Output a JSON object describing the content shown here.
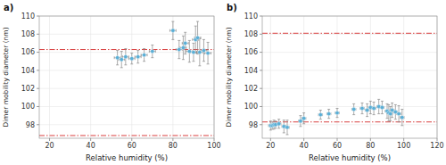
{
  "chart_data": [
    {
      "type": "scatter",
      "title": "a)",
      "x_label": "Relative humidity (%)",
      "y_label": "Dimer mobility diameter (nm)",
      "xlim": [
        15,
        100
      ],
      "ylim": [
        96.5,
        110
      ],
      "xticks": [
        20,
        40,
        60,
        80,
        100
      ],
      "yticks": [
        98,
        100,
        102,
        104,
        106,
        108,
        110
      ],
      "color": "#5bafd6",
      "reference_lines": {
        "values": [
          106.3,
          96.8
        ],
        "color": "#d94040",
        "line_style": "dashdot"
      },
      "x": [
        53,
        55,
        57,
        60,
        63,
        66,
        70,
        80,
        83,
        85,
        86,
        88,
        90,
        91,
        92,
        93,
        95,
        97
      ],
      "values": [
        105.4,
        105.2,
        105.5,
        105.3,
        105.5,
        105.7,
        106.1,
        108.4,
        106.3,
        106.5,
        107.0,
        106.1,
        106.0,
        107.4,
        107.6,
        106.0,
        106.2,
        105.9
      ],
      "x_error": [
        1.5,
        1.5,
        1.5,
        1.5,
        1.5,
        1.5,
        1.5,
        1.5,
        1.5,
        1.5,
        1.5,
        1.5,
        1.5,
        1.5,
        1.5,
        1.5,
        1.5,
        1.5
      ],
      "y_error": [
        0.8,
        0.9,
        0.9,
        0.6,
        0.7,
        0.7,
        0.7,
        1.0,
        1.0,
        1.3,
        1.2,
        1.2,
        1.0,
        1.5,
        1.8,
        1.5,
        1.2,
        1.2
      ]
    },
    {
      "type": "scatter",
      "title": "b)",
      "x_label": "Relative humidity (%)",
      "y_label": "Dimer mobility diameter (nm)",
      "xlim": [
        15,
        120
      ],
      "ylim": [
        96.5,
        110
      ],
      "xticks": [
        20,
        40,
        60,
        80,
        100,
        120
      ],
      "yticks": [
        98,
        100,
        102,
        104,
        106,
        108,
        110
      ],
      "color": "#5bafd6",
      "reference_lines": {
        "values": [
          108.1,
          98.3
        ],
        "color": "#d94040",
        "line_style": "dashdot"
      },
      "x": [
        20,
        21,
        22,
        23,
        25,
        28,
        30,
        38,
        40,
        50,
        55,
        60,
        70,
        75,
        78,
        80,
        82,
        85,
        87,
        90,
        91,
        92,
        93,
        95,
        97,
        99
      ],
      "values": [
        97.9,
        97.9,
        98.0,
        98.0,
        98.1,
        97.8,
        97.7,
        98.4,
        98.7,
        99.1,
        99.2,
        99.3,
        99.7,
        99.8,
        99.6,
        99.9,
        99.8,
        100.0,
        99.9,
        99.5,
        99.3,
        99.2,
        99.6,
        99.4,
        99.2,
        98.8
      ],
      "x_error": [
        1.2,
        1.2,
        1.2,
        1.2,
        1.2,
        1.2,
        1.2,
        1.2,
        1.2,
        1.2,
        1.2,
        1.2,
        1.2,
        1.2,
        1.2,
        1.2,
        1.2,
        1.2,
        1.2,
        1.2,
        1.2,
        1.2,
        1.2,
        1.2,
        1.2,
        1.2
      ],
      "y_error": [
        0.5,
        0.4,
        0.5,
        0.4,
        0.5,
        0.7,
        0.8,
        0.6,
        0.6,
        0.5,
        0.5,
        0.5,
        0.6,
        0.6,
        0.7,
        0.7,
        0.7,
        0.8,
        0.7,
        0.8,
        0.9,
        0.8,
        0.8,
        0.8,
        0.9,
        0.9
      ]
    }
  ]
}
